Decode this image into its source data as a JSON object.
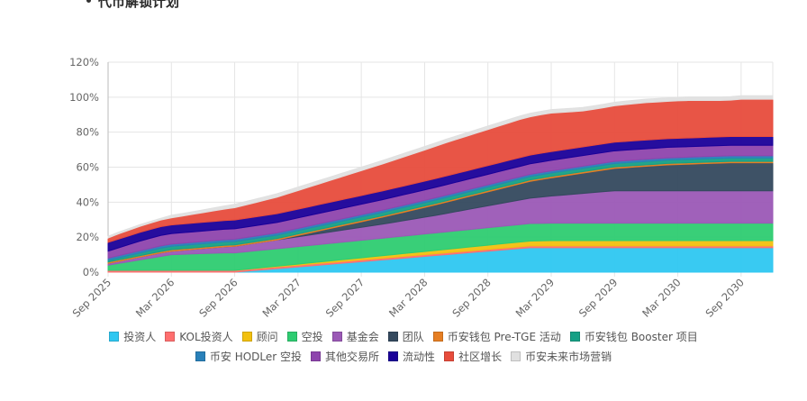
{
  "page": {
    "heading": "代币解锁计划"
  },
  "chart_data": {
    "type": "area",
    "stacked": true,
    "x": [
      "Sep 2025",
      "Oct 2025",
      "Nov 2025",
      "Dec 2025",
      "Jan 2026",
      "Feb 2026",
      "Mar 2026",
      "Apr 2026",
      "May 2026",
      "Jun 2026",
      "Jul 2026",
      "Aug 2026",
      "Sep 2026",
      "Oct 2026",
      "Nov 2026",
      "Dec 2026",
      "Jan 2027",
      "Feb 2027",
      "Mar 2027",
      "Apr 2027",
      "May 2027",
      "Jun 2027",
      "Jul 2027",
      "Aug 2027",
      "Sep 2027",
      "Oct 2027",
      "Nov 2027",
      "Dec 2027",
      "Jan 2028",
      "Feb 2028",
      "Mar 2028",
      "Apr 2028",
      "May 2028",
      "Jun 2028",
      "Jul 2028",
      "Aug 2028",
      "Sep 2028",
      "Oct 2028",
      "Nov 2028",
      "Dec 2028",
      "Jan 2029",
      "Feb 2029",
      "Mar 2029",
      "Apr 2029",
      "May 2029",
      "Jun 2029",
      "Jul 2029",
      "Aug 2029",
      "Sep 2029",
      "Oct 2029",
      "Nov 2029",
      "Dec 2029",
      "Jan 2030",
      "Feb 2030",
      "Mar 2030",
      "Apr 2030",
      "May 2030",
      "Jun 2030",
      "Jul 2030",
      "Aug 2030",
      "Sep 2030",
      "Oct 2030",
      "Nov 2030",
      "Dec 2030"
    ],
    "x_tick_labels": [
      "Sep 2025",
      "Mar 2026",
      "Sep 2026",
      "Mar 2027",
      "Sep 2027",
      "Mar 2028",
      "Sep 2028",
      "Mar 2029",
      "Sep 2029",
      "Mar 2030",
      "Sep 2030"
    ],
    "y_ticks": [
      "0%",
      "20%",
      "40%",
      "60%",
      "80%",
      "100%",
      "120%"
    ],
    "ylim": [
      0,
      120
    ],
    "y_unit": "%",
    "grid": true,
    "legend_position": "bottom",
    "series": [
      {
        "name": "投资人",
        "color": "#2ec7f1",
        "values": [
          0,
          0,
          0,
          0,
          0,
          0,
          0,
          0,
          0,
          0,
          0,
          0,
          0,
          0.5,
          1,
          1.5,
          2,
          2.5,
          3,
          3.5,
          4,
          4.5,
          5,
          5.5,
          6,
          6.5,
          7,
          7.5,
          8,
          8.5,
          9,
          9.5,
          10,
          10.5,
          11,
          11.5,
          12,
          12.5,
          13,
          13.5,
          14,
          14,
          14,
          14,
          14,
          14,
          14,
          14,
          14,
          14,
          14,
          14,
          14,
          14,
          14,
          14,
          14,
          14,
          14,
          14,
          14,
          14,
          14,
          14
        ]
      },
      {
        "name": "KOL投资人",
        "color": "#ff6f6f",
        "values": [
          1,
          1,
          1,
          1,
          1,
          1,
          1,
          1,
          1,
          1,
          1,
          1,
          1,
          1,
          1,
          1,
          1,
          1,
          1,
          1,
          1,
          1,
          1,
          1,
          1,
          1,
          1,
          1,
          1,
          1,
          1,
          1,
          1,
          1,
          1,
          1,
          1,
          1,
          1,
          1,
          1,
          1,
          1,
          1,
          1,
          1,
          1,
          1,
          1,
          1,
          1,
          1,
          1,
          1,
          1,
          1,
          1,
          1,
          1,
          1,
          1,
          1,
          1,
          1
        ]
      },
      {
        "name": "顾问",
        "color": "#f2c00f",
        "values": [
          0,
          0,
          0,
          0,
          0,
          0,
          0,
          0,
          0,
          0,
          0,
          0,
          0,
          0.1,
          0.2,
          0.3,
          0.4,
          0.5,
          0.6,
          0.7,
          0.8,
          0.9,
          1,
          1.1,
          1.2,
          1.3,
          1.4,
          1.5,
          1.6,
          1.7,
          1.8,
          1.9,
          2,
          2.1,
          2.2,
          2.3,
          2.4,
          2.5,
          2.6,
          2.7,
          2.8,
          2.9,
          3,
          3,
          3,
          3,
          3,
          3,
          3,
          3,
          3,
          3,
          3,
          3,
          3,
          3,
          3,
          3,
          3,
          3,
          3,
          3,
          3,
          3
        ]
      },
      {
        "name": "空投",
        "color": "#2ecc71",
        "values": [
          3,
          4,
          5,
          6,
          7,
          8,
          9,
          9.2,
          9.4,
          9.6,
          9.8,
          10,
          10,
          10,
          10,
          10,
          10,
          10,
          10,
          10,
          10,
          10,
          10,
          10,
          10,
          10,
          10,
          10,
          10,
          10,
          10,
          10,
          10,
          10,
          10,
          10,
          10,
          10,
          10,
          10,
          10,
          10,
          10,
          10,
          10,
          10,
          10,
          10,
          10,
          10,
          10,
          10,
          10,
          10,
          10,
          10,
          10,
          10,
          10,
          10,
          10,
          10,
          10,
          10
        ]
      },
      {
        "name": "基金会",
        "color": "#9b59b6",
        "values": [
          1,
          1.2,
          1.4,
          1.6,
          1.8,
          2,
          2,
          2.3,
          2.6,
          2.9,
          3.2,
          3.5,
          3.8,
          4.1,
          4.4,
          4.7,
          5,
          5.3,
          5.6,
          5.9,
          6.2,
          6.5,
          6.8,
          7.1,
          7.4,
          7.7,
          8,
          8.4,
          8.8,
          9.2,
          9.6,
          10,
          10.5,
          11,
          11.5,
          12,
          12.5,
          13,
          13.5,
          14,
          14.5,
          15,
          15.5,
          16,
          16.5,
          17,
          17.5,
          18,
          18.5,
          18.5,
          18.5,
          18.5,
          18.5,
          18.5,
          18.5,
          18.5,
          18.5,
          18.5,
          18.5,
          18.5,
          18.5,
          18.5,
          18.5,
          18.5
        ]
      },
      {
        "name": "团队",
        "color": "#34495e",
        "values": [
          0,
          0,
          0,
          0,
          0,
          0,
          0,
          0,
          0,
          0,
          0,
          0,
          0,
          0,
          0,
          0,
          0,
          0.4,
          0.8,
          1.2,
          1.6,
          2,
          2.4,
          2.8,
          3.2,
          3.6,
          4,
          4.4,
          4.8,
          5.2,
          5.6,
          6,
          6.4,
          6.8,
          7.2,
          7.6,
          8,
          8.4,
          8.8,
          9.2,
          9.6,
          10,
          10.4,
          10.8,
          11.2,
          11.6,
          12,
          12.4,
          12.8,
          13.2,
          13.6,
          14,
          14.4,
          14.8,
          15,
          15.2,
          15.4,
          15.6,
          15.8,
          16,
          16,
          16,
          16,
          16
        ]
      },
      {
        "name": "币安钱包 Pre-TGE 活动",
        "color": "#e67e22",
        "values": [
          0.8,
          0.8,
          0.8,
          0.8,
          0.8,
          0.8,
          0.8,
          0.8,
          0.8,
          0.8,
          0.8,
          0.8,
          0.8,
          0.8,
          0.8,
          0.8,
          0.8,
          0.8,
          0.8,
          0.8,
          0.8,
          0.8,
          0.8,
          0.8,
          0.8,
          0.8,
          0.8,
          0.8,
          0.8,
          0.8,
          0.8,
          0.8,
          0.8,
          0.8,
          0.8,
          0.8,
          0.8,
          0.8,
          0.8,
          0.8,
          0.8,
          0.8,
          0.8,
          0.8,
          0.8,
          0.8,
          0.8,
          0.8,
          0.8,
          0.8,
          0.8,
          0.8,
          0.8,
          0.8,
          0.8,
          0.8,
          0.8,
          0.8,
          0.8,
          0.8,
          0.8,
          0.8,
          0.8,
          0.8
        ]
      },
      {
        "name": "币安钱包 Booster 项目",
        "color": "#16a085",
        "values": [
          1,
          1.2,
          1.4,
          1.6,
          1.8,
          2,
          2,
          2,
          2,
          2,
          2,
          2,
          2,
          2,
          2,
          2,
          2,
          2,
          2,
          2,
          2,
          2,
          2,
          2,
          2,
          2,
          2,
          2,
          2,
          2,
          2,
          2,
          2,
          2,
          2,
          2,
          2,
          2,
          2,
          2,
          2,
          2,
          2,
          2,
          2,
          2,
          2,
          2,
          2,
          2,
          2,
          2,
          2,
          2,
          2,
          2,
          2,
          2,
          2,
          2,
          2,
          2,
          2,
          2
        ]
      },
      {
        "name": "币安 HODLer 空投",
        "color": "#2980b9",
        "values": [
          1.2,
          1.2,
          1.2,
          1.2,
          1.2,
          1.2,
          1.2,
          1.2,
          1.2,
          1.2,
          1.2,
          1.2,
          1.2,
          1.2,
          1.2,
          1.2,
          1.2,
          1.2,
          1.2,
          1.2,
          1.2,
          1.2,
          1.2,
          1.2,
          1.2,
          1.2,
          1.2,
          1.2,
          1.2,
          1.2,
          1.2,
          1.2,
          1.2,
          1.2,
          1.2,
          1.2,
          1.2,
          1.2,
          1.2,
          1.2,
          1.2,
          1.2,
          1.2,
          1.2,
          1.2,
          1.2,
          1.2,
          1.2,
          1.2,
          1.2,
          1.2,
          1.2,
          1.2,
          1.2,
          1.2,
          1.2,
          1.2,
          1.2,
          1.2,
          1.2,
          1.2,
          1.2,
          1.2,
          1.2
        ]
      },
      {
        "name": "其他交易所",
        "color": "#8e44ad",
        "values": [
          4,
          4.5,
          5,
          5.5,
          5.8,
          6,
          6,
          6,
          6,
          6,
          6,
          6,
          6,
          6,
          6,
          6,
          6,
          6,
          6,
          6,
          6,
          6,
          6,
          6,
          6,
          6,
          6,
          6,
          6,
          6,
          6,
          6,
          6,
          6,
          6,
          6,
          6,
          6,
          6,
          6,
          6,
          6,
          6,
          6,
          6,
          6,
          6,
          6,
          6,
          6,
          6,
          6,
          6,
          6,
          6,
          6,
          6,
          6,
          6,
          6,
          6,
          6,
          6,
          6
        ]
      },
      {
        "name": "流动性",
        "color": "#1a0099",
        "values": [
          5,
          5,
          5,
          5,
          5,
          5,
          5,
          5,
          5,
          5,
          5,
          5,
          5,
          5,
          5,
          5,
          5,
          5,
          5,
          5,
          5,
          5,
          5,
          5,
          5,
          5,
          5,
          5,
          5,
          5,
          5,
          5,
          5,
          5,
          5,
          5,
          5,
          5,
          5,
          5,
          5,
          5,
          5,
          5,
          5,
          5,
          5,
          5,
          5,
          5,
          5,
          5,
          5,
          5,
          5,
          5,
          5,
          5,
          5,
          5,
          5,
          5,
          5,
          5
        ]
      },
      {
        "name": "社区增长",
        "color": "#e74c3c",
        "values": [
          2.5,
          3,
          3.2,
          3.4,
          3.6,
          3.8,
          4,
          4.5,
          5,
          5.5,
          6,
          6.5,
          7,
          7.6,
          8.2,
          8.8,
          9.4,
          10,
          10.6,
          11.2,
          11.8,
          12.4,
          13,
          13.6,
          14.2,
          14.8,
          15.4,
          16,
          16.6,
          17.2,
          17.8,
          18.4,
          19,
          19.4,
          19.8,
          20.2,
          20.6,
          21,
          21.4,
          21.8,
          21.9,
          22,
          22,
          21.5,
          21,
          20.5,
          20.5,
          20.6,
          20.8,
          21,
          21.2,
          21.4,
          21.3,
          21.3,
          21.4,
          21.4,
          21.2,
          21,
          20.8,
          20.8,
          21.3,
          21.3,
          21.3,
          21.3
        ]
      },
      {
        "name": "币安未来市场营销",
        "color": "#e0e0e0",
        "values": [
          1,
          1,
          1,
          1,
          1,
          1,
          1.5,
          1.5,
          1.5,
          1.6,
          1.7,
          1.8,
          2,
          2,
          2,
          2,
          2,
          2,
          2,
          2,
          2,
          2,
          2,
          2,
          2,
          2,
          2,
          2,
          2,
          2,
          2,
          2,
          2,
          2,
          2,
          2,
          2,
          2,
          2,
          2,
          2,
          2,
          2,
          2,
          2,
          2,
          2,
          2,
          2,
          2,
          2,
          2,
          2,
          2,
          2,
          2,
          2,
          2,
          2,
          2,
          2,
          2,
          2,
          2
        ]
      }
    ]
  }
}
